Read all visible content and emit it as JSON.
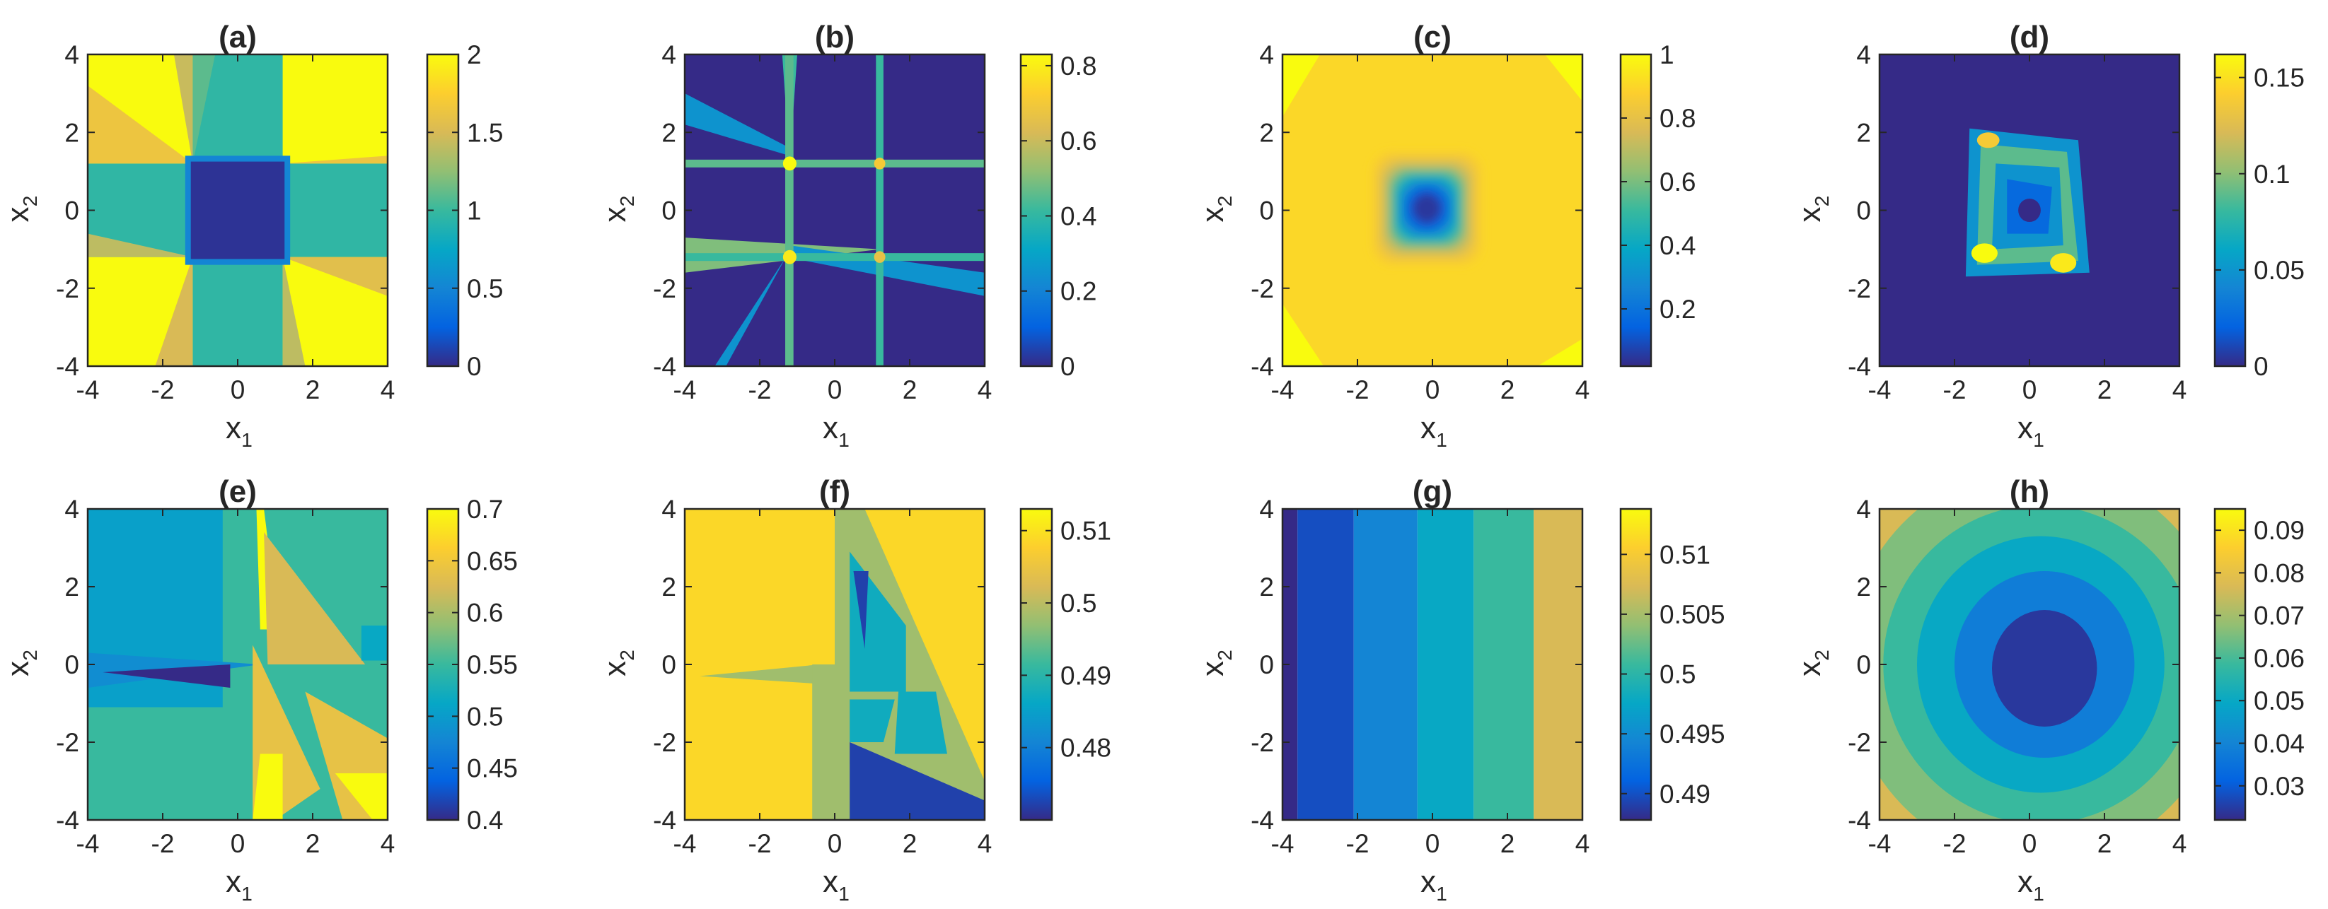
{
  "colors": {
    "colormap": [
      "#352a87",
      "#0363e1",
      "#1485d4",
      "#06a7c6",
      "#38b99e",
      "#92bf73",
      "#d9ba56",
      "#fcce2e",
      "#f9fb0e"
    ],
    "axis": "#262626",
    "background": "#ffffff"
  },
  "chart_data": [
    {
      "id": "a",
      "type": "heatmap",
      "title": "(a)",
      "xlabel": "x",
      "xlabel_sub": "1",
      "ylabel": "x",
      "ylabel_sub": "2",
      "xlim": [
        -4,
        4
      ],
      "ylim": [
        -4,
        4
      ],
      "xticks": [
        "-4",
        "-2",
        "0",
        "2",
        "4"
      ],
      "yticks": [
        "4",
        "2",
        "0",
        "-2",
        "-4"
      ],
      "clim": [
        0,
        2
      ],
      "cbar_ticks": [
        {
          "v": 0,
          "t": "0"
        },
        {
          "v": 0.5,
          "t": "0.5"
        },
        {
          "v": 1,
          "t": "1"
        },
        {
          "v": 1.5,
          "t": "1.5"
        },
        {
          "v": 2,
          "t": "2"
        }
      ]
    },
    {
      "id": "b",
      "type": "heatmap",
      "title": "(b)",
      "xlabel": "x",
      "xlabel_sub": "1",
      "ylabel": "x",
      "ylabel_sub": "2",
      "xlim": [
        -4,
        4
      ],
      "ylim": [
        -4,
        4
      ],
      "xticks": [
        "-4",
        "-2",
        "0",
        "2",
        "4"
      ],
      "yticks": [
        "4",
        "2",
        "0",
        "-2",
        "-4"
      ],
      "clim": [
        0,
        0.83
      ],
      "cbar_ticks": [
        {
          "v": 0,
          "t": "0"
        },
        {
          "v": 0.2,
          "t": "0.2"
        },
        {
          "v": 0.4,
          "t": "0.4"
        },
        {
          "v": 0.6,
          "t": "0.6"
        },
        {
          "v": 0.8,
          "t": "0.8"
        }
      ]
    },
    {
      "id": "c",
      "type": "heatmap",
      "title": "(c)",
      "xlabel": "x",
      "xlabel_sub": "1",
      "ylabel": "x",
      "ylabel_sub": "2",
      "xlim": [
        -4,
        4
      ],
      "ylim": [
        -4,
        4
      ],
      "xticks": [
        "-4",
        "-2",
        "0",
        "2",
        "4"
      ],
      "yticks": [
        "4",
        "2",
        "0",
        "-2",
        "-4"
      ],
      "clim": [
        0.02,
        1
      ],
      "cbar_ticks": [
        {
          "v": 0.2,
          "t": "0.2"
        },
        {
          "v": 0.4,
          "t": "0.4"
        },
        {
          "v": 0.6,
          "t": "0.6"
        },
        {
          "v": 0.8,
          "t": "0.8"
        },
        {
          "v": 1,
          "t": "1"
        }
      ]
    },
    {
      "id": "d",
      "type": "heatmap",
      "title": "(d)",
      "xlabel": "x",
      "xlabel_sub": "1",
      "ylabel": "x",
      "ylabel_sub": "2",
      "xlim": [
        -4,
        4
      ],
      "ylim": [
        -4,
        4
      ],
      "xticks": [
        "-4",
        "-2",
        "0",
        "2",
        "4"
      ],
      "yticks": [
        "4",
        "2",
        "0",
        "-2",
        "-4"
      ],
      "clim": [
        0,
        0.162
      ],
      "cbar_ticks": [
        {
          "v": 0,
          "t": "0"
        },
        {
          "v": 0.05,
          "t": "0.05"
        },
        {
          "v": 0.1,
          "t": "0.1"
        },
        {
          "v": 0.15,
          "t": "0.15"
        }
      ]
    },
    {
      "id": "e",
      "type": "heatmap",
      "title": "(e)",
      "xlabel": "x",
      "xlabel_sub": "1",
      "ylabel": "x",
      "ylabel_sub": "2",
      "xlim": [
        -4,
        4
      ],
      "ylim": [
        -4,
        4
      ],
      "xticks": [
        "-4",
        "-2",
        "0",
        "2",
        "4"
      ],
      "yticks": [
        "4",
        "2",
        "0",
        "-2",
        "-4"
      ],
      "clim": [
        0.4,
        0.7
      ],
      "cbar_ticks": [
        {
          "v": 0.4,
          "t": "0.4"
        },
        {
          "v": 0.45,
          "t": "0.45"
        },
        {
          "v": 0.5,
          "t": "0.5"
        },
        {
          "v": 0.55,
          "t": "0.55"
        },
        {
          "v": 0.6,
          "t": "0.6"
        },
        {
          "v": 0.65,
          "t": "0.65"
        },
        {
          "v": 0.7,
          "t": "0.7"
        }
      ]
    },
    {
      "id": "f",
      "type": "heatmap",
      "title": "(f)",
      "xlabel": "x",
      "xlabel_sub": "1",
      "ylabel": "x",
      "ylabel_sub": "2",
      "xlim": [
        -4,
        4
      ],
      "ylim": [
        -4,
        4
      ],
      "xticks": [
        "-4",
        "-2",
        "0",
        "2",
        "4"
      ],
      "yticks": [
        "4",
        "2",
        "0",
        "-2",
        "-4"
      ],
      "clim": [
        0.47,
        0.513
      ],
      "cbar_ticks": [
        {
          "v": 0.48,
          "t": "0.48"
        },
        {
          "v": 0.49,
          "t": "0.49"
        },
        {
          "v": 0.5,
          "t": "0.5"
        },
        {
          "v": 0.51,
          "t": "0.51"
        }
      ]
    },
    {
      "id": "g",
      "type": "heatmap",
      "title": "(g)",
      "xlabel": "x",
      "xlabel_sub": "1",
      "ylabel": "x",
      "ylabel_sub": "2",
      "xlim": [
        -4,
        4
      ],
      "ylim": [
        -4,
        4
      ],
      "xticks": [
        "-4",
        "-2",
        "0",
        "2",
        "4"
      ],
      "yticks": [
        "4",
        "2",
        "0",
        "-2",
        "-4"
      ],
      "clim": [
        0.4878,
        0.5138
      ],
      "cbar_ticks": [
        {
          "v": 0.49,
          "t": "0.49"
        },
        {
          "v": 0.495,
          "t": "0.495"
        },
        {
          "v": 0.5,
          "t": "0.5"
        },
        {
          "v": 0.505,
          "t": "0.505"
        },
        {
          "v": 0.51,
          "t": "0.51"
        }
      ]
    },
    {
      "id": "h",
      "type": "heatmap",
      "title": "(h)",
      "xlabel": "x",
      "xlabel_sub": "1",
      "ylabel": "x",
      "ylabel_sub": "2",
      "xlim": [
        -4,
        4
      ],
      "ylim": [
        -4,
        4
      ],
      "xticks": [
        "-4",
        "-2",
        "0",
        "2",
        "4"
      ],
      "yticks": [
        "4",
        "2",
        "0",
        "-2",
        "-4"
      ],
      "clim": [
        0.022,
        0.095
      ],
      "cbar_ticks": [
        {
          "v": 0.03,
          "t": "0.03"
        },
        {
          "v": 0.04,
          "t": "0.04"
        },
        {
          "v": 0.05,
          "t": "0.05"
        },
        {
          "v": 0.06,
          "t": "0.06"
        },
        {
          "v": 0.07,
          "t": "0.07"
        },
        {
          "v": 0.08,
          "t": "0.08"
        },
        {
          "v": 0.09,
          "t": "0.09"
        }
      ]
    }
  ]
}
